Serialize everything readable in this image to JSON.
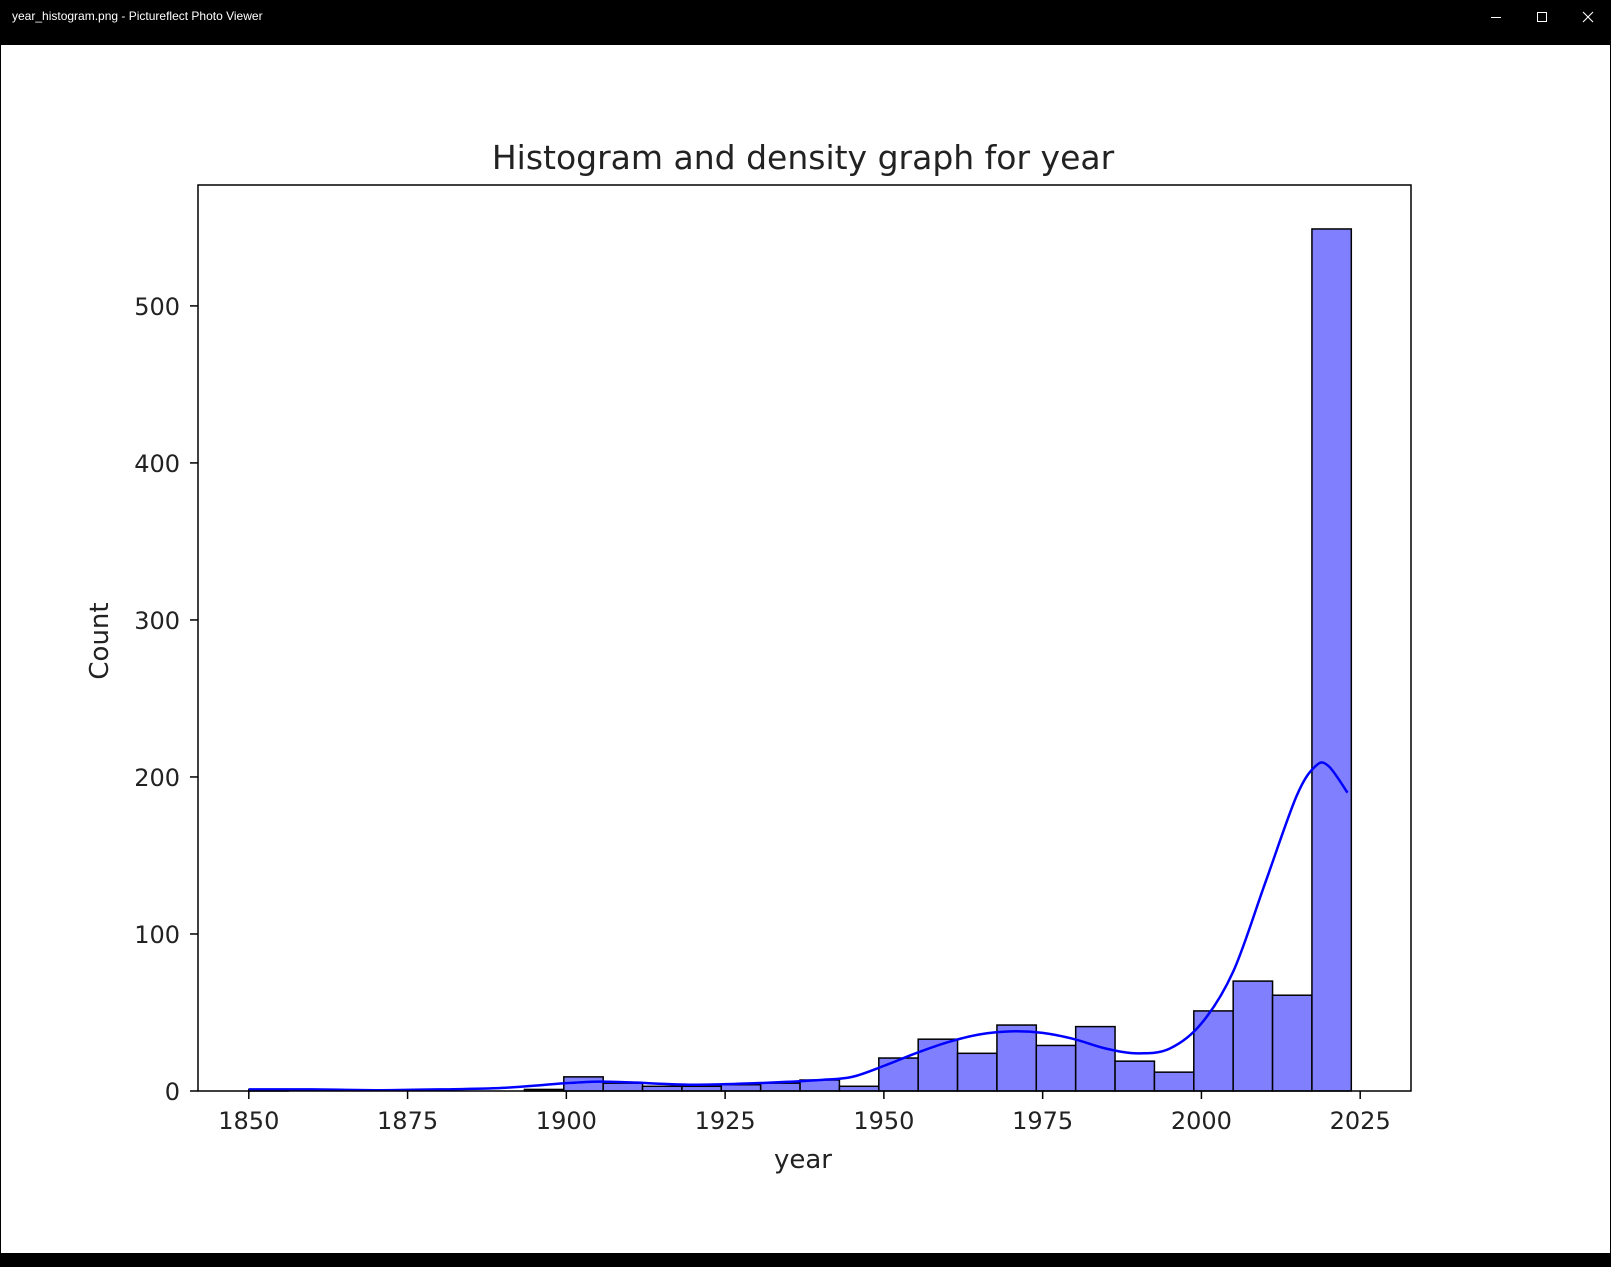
{
  "window": {
    "title": "year_histogram.png - Pictureflect Photo Viewer",
    "buttons": [
      {
        "name": "minimize",
        "icon": "minimize-icon"
      },
      {
        "name": "maximize",
        "icon": "maximize-icon"
      },
      {
        "name": "close",
        "icon": "close-icon"
      }
    ]
  },
  "chart_data": {
    "type": "bar",
    "title": "Histogram and density graph for year",
    "xlabel": "year",
    "ylabel": "Count",
    "xlim": [
      1842,
      2033
    ],
    "ylim": [
      0,
      577
    ],
    "xticks": [
      1850,
      1875,
      1900,
      1925,
      1950,
      1975,
      2000,
      2025
    ],
    "yticks": [
      0,
      100,
      200,
      300,
      400,
      500
    ],
    "grid": false,
    "bar_color": "#8080ff",
    "edge_color": "#000000",
    "line_color": "#0000ff",
    "bins": [
      {
        "start": 1850.0,
        "end": 1856.2,
        "count": 1
      },
      {
        "start": 1856.2,
        "end": 1862.4,
        "count": 0
      },
      {
        "start": 1862.4,
        "end": 1868.6,
        "count": 0
      },
      {
        "start": 1868.6,
        "end": 1874.8,
        "count": 0
      },
      {
        "start": 1874.8,
        "end": 1881.0,
        "count": 0
      },
      {
        "start": 1881.0,
        "end": 1887.2,
        "count": 0
      },
      {
        "start": 1887.2,
        "end": 1893.4,
        "count": 0
      },
      {
        "start": 1893.4,
        "end": 1899.6,
        "count": 1
      },
      {
        "start": 1899.6,
        "end": 1905.8,
        "count": 9
      },
      {
        "start": 1905.8,
        "end": 1912.0,
        "count": 5
      },
      {
        "start": 1912.0,
        "end": 1918.2,
        "count": 3
      },
      {
        "start": 1918.2,
        "end": 1924.4,
        "count": 3
      },
      {
        "start": 1924.4,
        "end": 1930.6,
        "count": 4
      },
      {
        "start": 1930.6,
        "end": 1936.8,
        "count": 5
      },
      {
        "start": 1936.8,
        "end": 1943.0,
        "count": 7
      },
      {
        "start": 1943.0,
        "end": 1949.2,
        "count": 3
      },
      {
        "start": 1949.2,
        "end": 1955.4,
        "count": 21
      },
      {
        "start": 1955.4,
        "end": 1961.6,
        "count": 33
      },
      {
        "start": 1961.6,
        "end": 1967.8,
        "count": 24
      },
      {
        "start": 1967.8,
        "end": 1974.0,
        "count": 42
      },
      {
        "start": 1974.0,
        "end": 1980.2,
        "count": 29
      },
      {
        "start": 1980.2,
        "end": 1986.4,
        "count": 41
      },
      {
        "start": 1986.4,
        "end": 1992.6,
        "count": 19
      },
      {
        "start": 1992.6,
        "end": 1998.8,
        "count": 12
      },
      {
        "start": 1998.8,
        "end": 2005.0,
        "count": 51
      },
      {
        "start": 2005.0,
        "end": 2011.2,
        "count": 70
      },
      {
        "start": 2011.2,
        "end": 2017.4,
        "count": 61
      },
      {
        "start": 2017.4,
        "end": 2023.6,
        "count": 549
      }
    ],
    "density_curve": {
      "x": [
        1850,
        1860,
        1870,
        1880,
        1890,
        1900,
        1905,
        1910,
        1920,
        1930,
        1940,
        1945,
        1950,
        1955,
        1960,
        1965,
        1970,
        1975,
        1980,
        1985,
        1990,
        1995,
        2000,
        2005,
        2010,
        2015,
        2018,
        2020,
        2023
      ],
      "y": [
        1,
        1,
        0.5,
        1,
        2,
        5,
        6,
        5.5,
        4,
        5,
        7,
        9,
        16,
        24,
        31,
        36,
        38,
        37,
        33,
        27,
        24,
        27,
        43,
        76,
        132,
        188,
        207,
        207,
        190
      ]
    }
  }
}
